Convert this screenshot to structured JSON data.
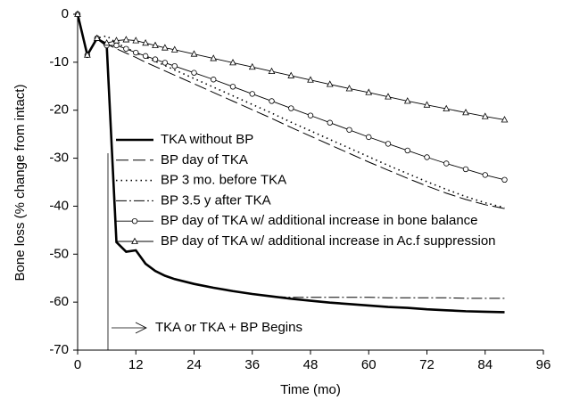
{
  "chart_data": {
    "type": "line",
    "x_label": "Time (mo)",
    "y_label": "Bone loss (% change from intact)",
    "x": [
      0,
      2,
      4,
      6,
      8,
      10,
      12,
      14,
      16,
      18,
      20,
      24,
      28,
      32,
      36,
      40,
      44,
      48,
      52,
      56,
      60,
      64,
      68,
      72,
      76,
      80,
      84,
      88
    ],
    "series": [
      {
        "name": "TKA without BP",
        "color": "#000000",
        "line_style": "thick",
        "marker": "none",
        "values": [
          0,
          -8.5,
          -5,
          -6.5,
          -47.5,
          -49.5,
          -49.2,
          -52,
          -53.5,
          -54.5,
          -55.2,
          -56.2,
          -57,
          -57.7,
          -58.3,
          -58.8,
          -59.3,
          -59.7,
          -60.1,
          -60.4,
          -60.7,
          -61,
          -61.2,
          -61.5,
          -61.7,
          -61.9,
          -62,
          -62.1
        ]
      },
      {
        "name": "BP day of TKA",
        "color": "#000000",
        "line_style": "dashed",
        "marker": "none",
        "values": [
          0,
          -8.5,
          -5,
          -6.2,
          -7.2,
          -8.1,
          -9,
          -10,
          -10.9,
          -11.8,
          -12.7,
          -14.5,
          -16.3,
          -18.1,
          -19.9,
          -21.7,
          -23.6,
          -25.4,
          -27.2,
          -29,
          -30.8,
          -32.5,
          -34.2,
          -35.8,
          -37.3,
          -38.6,
          -39.7,
          -40.5
        ]
      },
      {
        "name": "BP 3 mo. before TKA",
        "color": "#000000",
        "line_style": "dotted",
        "marker": "none",
        "values": [
          0,
          -8.5,
          -5,
          -4.5,
          -6,
          -7,
          -8,
          -8.9,
          -9.8,
          -10.7,
          -11.6,
          -13.4,
          -15.2,
          -17,
          -18.8,
          -20.6,
          -22.5,
          -24.3,
          -26.1,
          -27.9,
          -29.7,
          -31.5,
          -33.2,
          -34.9,
          -36.5,
          -38,
          -39.3,
          -40.3
        ]
      },
      {
        "name": "BP 3.5 y after TKA",
        "color": "#000000",
        "line_style": "dashdot",
        "marker": "none",
        "values": [
          0,
          -8.5,
          -5,
          -6.5,
          -47.5,
          -49.5,
          -49.2,
          -52,
          -53.5,
          -54.5,
          -55.2,
          -56.2,
          -57,
          -57.7,
          -58.3,
          -58.8,
          -59,
          -59,
          -59,
          -59,
          -59,
          -59.1,
          -59.1,
          -59.1,
          -59.1,
          -59.2,
          -59.2,
          -59.2
        ]
      },
      {
        "name": "BP day of TKA w/ additional increase in bone balance",
        "color": "#000000",
        "line_style": "solid",
        "marker": "circle",
        "values": [
          0,
          -8.5,
          -5,
          -6.5,
          -6.5,
          -7.2,
          -8,
          -8.7,
          -9.4,
          -10.1,
          -10.8,
          -12.2,
          -13.6,
          -15.1,
          -16.6,
          -18.1,
          -19.6,
          -21.1,
          -22.6,
          -24.1,
          -25.6,
          -27,
          -28.4,
          -29.8,
          -31.1,
          -32.3,
          -33.5,
          -34.5
        ]
      },
      {
        "name": "BP day of TKA w/ additional increase in Ac.f suppression",
        "color": "#000000",
        "line_style": "solid",
        "marker": "triangle",
        "values": [
          0,
          -8.5,
          -5,
          -6,
          -5.5,
          -5.3,
          -5.5,
          -6,
          -6.5,
          -7,
          -7.4,
          -8.3,
          -9.2,
          -10.1,
          -11,
          -11.9,
          -12.8,
          -13.7,
          -14.6,
          -15.5,
          -16.3,
          -17.2,
          -18.1,
          -18.9,
          -19.7,
          -20.5,
          -21.3,
          -22
        ]
      }
    ],
    "annotation": "TKA or TKA + BP Begins",
    "xlim": [
      0,
      96
    ],
    "xticks": [
      0,
      12,
      24,
      36,
      48,
      60,
      72,
      84,
      96
    ],
    "ylim": [
      -70,
      0
    ],
    "yticks": [
      -70,
      -60,
      -50,
      -40,
      -30,
      -20,
      -10,
      0
    ],
    "grid": false,
    "legend": "inside-left"
  }
}
